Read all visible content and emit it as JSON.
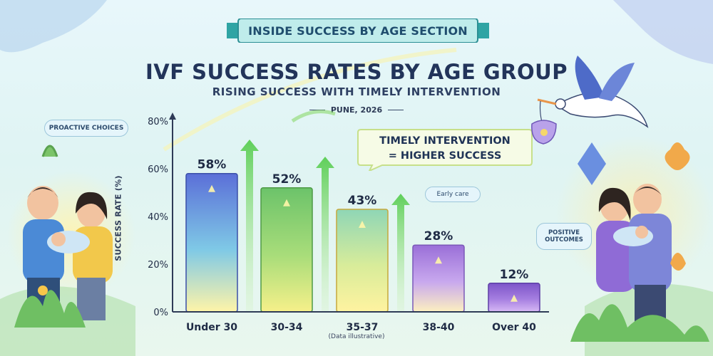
{
  "header": {
    "banner": "INSIDE SUCCESS BY AGE SECTION",
    "title": "IVF SUCCESS RATES BY AGE GROUP",
    "subtitle": "RISING SUCCESS WITH TIMELY INTERVENTION",
    "location": "PUNE, 2026"
  },
  "labels": {
    "proactive": "PROACTIVE CHOICES",
    "early_care": "Early care",
    "positive": "POSITIVE OUTCOMES",
    "callout_line1": "TIMELY INTERVENTION",
    "callout_line2": "= HIGHER SUCCESS",
    "footnote": "(Data illustrative)"
  },
  "colors": {
    "bar_blue": "#5b8fe0",
    "bar_green": "#8fd36b",
    "bar_yellow": "#f3dc6a",
    "bar_purple": "#9a6fd8",
    "arrow_green": "#5fcf5a",
    "text_dark": "#1f2b45"
  },
  "chart_data": {
    "type": "bar",
    "title": "IVF SUCCESS RATES BY AGE GROUP",
    "subtitle": "RISING SUCCESS WITH TIMELY INTERVENTION",
    "categories": [
      "Under 30",
      "30-34",
      "35-37",
      "38-40",
      "Over 40"
    ],
    "values": [
      58,
      52,
      43,
      28,
      12
    ],
    "value_labels": [
      "58%",
      "52%",
      "43%",
      "28%",
      "12%"
    ],
    "ylabel": "SUCCESS RATE (%)",
    "xlabel": "",
    "ylim": [
      0,
      80
    ],
    "yticks": [
      0,
      20,
      40,
      60,
      80
    ],
    "ytick_labels": [
      "0%",
      "20%",
      "40%",
      "60%",
      "80%"
    ],
    "grid": false,
    "legend": "none"
  }
}
